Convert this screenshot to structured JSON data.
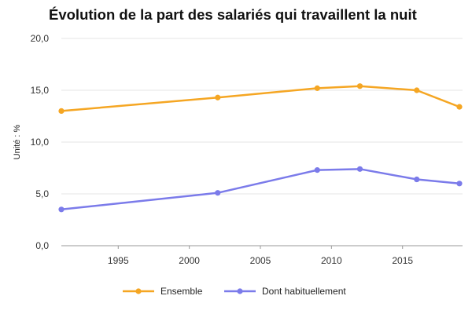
{
  "chart_data": {
    "type": "line",
    "title": "Évolution de la part des salariés qui travaillent la nuit",
    "ylabel": "Unité : %",
    "xlabel": "",
    "xlim": [
      1991,
      2019
    ],
    "ylim": [
      0,
      20
    ],
    "x_ticks": [
      1995,
      2000,
      2005,
      2010,
      2015
    ],
    "y_ticks": [
      "0,0",
      "5,0",
      "10,0",
      "15,0",
      "20,0"
    ],
    "grid": true,
    "legend_position": "bottom",
    "series": [
      {
        "name": "Ensemble",
        "color": "#f5a623",
        "x": [
          1991,
          2002,
          2009,
          2012,
          2016,
          2019
        ],
        "y": [
          13.0,
          14.3,
          15.2,
          15.4,
          15.0,
          13.4
        ]
      },
      {
        "name": "Dont habituellement",
        "color": "#7b7bea",
        "x": [
          1991,
          2002,
          2009,
          2012,
          2016,
          2019
        ],
        "y": [
          3.5,
          5.1,
          7.3,
          7.4,
          6.4,
          6.0
        ]
      }
    ]
  }
}
